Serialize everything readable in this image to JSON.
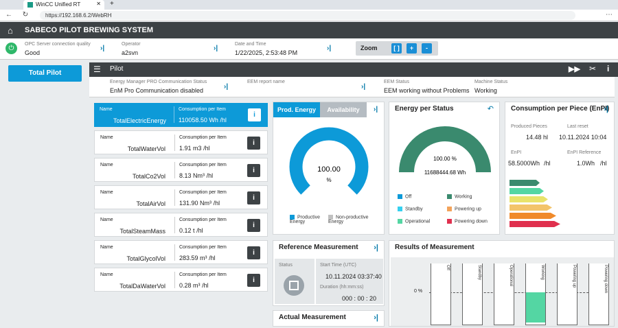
{
  "browser": {
    "tab_title": "WinCC Unified RT",
    "url": "https://192.168.6.2/WebRH"
  },
  "header": {
    "title": "SABECO PILOT BREWING SYSTEM"
  },
  "infobar": {
    "opc_label": "OPC Server connection quality",
    "opc_value": "Good",
    "operator_label": "Operator",
    "operator_value": "a2svn",
    "datetime_label": "Date and Time",
    "datetime_value": "1/22/2025, 2:53:48 PM",
    "zoom_label": "Zoom",
    "zoom_fit": "[ ]",
    "zoom_in": "+",
    "zoom_out": "-"
  },
  "nav": {
    "total_pilot": "Total Pilot"
  },
  "panel": {
    "title": "Pilot"
  },
  "status": {
    "em_label": "Energy Manager PRO Communication Status",
    "em_value": "EnM Pro Communication disabled",
    "eem_report_label": "EEM report name",
    "eem_status_label": "EEM Status",
    "eem_status_value": "EEM working without Problems",
    "machine_label": "Machine Status",
    "machine_value": "Working"
  },
  "cards": [
    {
      "name_label": "Name",
      "name": "TotalElectricEnergy",
      "cpi_label": "Consumption per Item",
      "value": "110058.50",
      "unit": "Wh",
      "per": "/hl",
      "selected": true
    },
    {
      "name_label": "Name",
      "name": "TotalWaterVol",
      "cpi_label": "Consumption per Item",
      "value": "1.91",
      "unit": "m3",
      "per": "/hl",
      "selected": false
    },
    {
      "name_label": "Name",
      "name": "TotalCo2Vol",
      "cpi_label": "Consumption per Item",
      "value": "8.13",
      "unit": "Nm³",
      "per": "/hl",
      "selected": false
    },
    {
      "name_label": "Name",
      "name": "TotalAirVol",
      "cpi_label": "Consumption per Item",
      "value": "131.90",
      "unit": "Nm³",
      "per": "/hl",
      "selected": false
    },
    {
      "name_label": "Name",
      "name": "TotalSteamMass",
      "cpi_label": "Consumption per Item",
      "value": "0.12",
      "unit": "t",
      "per": "/hl",
      "selected": false
    },
    {
      "name_label": "Name",
      "name": "TotalGlycolVol",
      "cpi_label": "Consumption per Item",
      "value": "283.59",
      "unit": "m³",
      "per": "/hl",
      "selected": false
    },
    {
      "name_label": "Name",
      "name": "TotalDaWaterVol",
      "cpi_label": "Consumption per Item",
      "value": "0.28",
      "unit": "m³",
      "per": "/hl",
      "selected": false
    }
  ],
  "prod": {
    "tab_energy": "Prod. Energy",
    "tab_availability": "Availability",
    "gauge_value": "100.00",
    "gauge_unit": "%",
    "gauge_fraction": 1.0,
    "legend_productive": "Productive Energy",
    "legend_nonproductive": "Non-productive Energy",
    "color_productive": "#0d9ad8",
    "color_nonproductive": "#c0c0c0"
  },
  "eps": {
    "title": "Energy per Status",
    "gauge_value": "100.00 %",
    "gauge_energy": "11688444.68 Wh",
    "gauge_color": "#3a8a6e",
    "legend": [
      {
        "label": "Off",
        "color": "#0d9ad8"
      },
      {
        "label": "Working",
        "color": "#3a8a6e"
      },
      {
        "label": "Standby",
        "color": "#35d0f0"
      },
      {
        "label": "Powering up",
        "color": "#f3a35a"
      },
      {
        "label": "Operational",
        "color": "#54d6a3"
      },
      {
        "label": "Powering down",
        "color": "#e0304e"
      }
    ]
  },
  "enpi": {
    "title": "Consumption per Piece (EnPI)",
    "produced_label": "Produced Pieces",
    "produced_value": "14.48 hl",
    "last_reset_label": "Last reset",
    "last_reset_value": "10.11.2024 10:04",
    "enpi_label": "EnPI",
    "enpi_value": "58.5000Wh",
    "enpi_unit": "/hl",
    "enpi_ref_label": "EnPI Reference",
    "enpi_ref_value": "1.0Wh",
    "enpi_ref_unit": "/hl",
    "energy_class_colors": [
      "#3a8a6e",
      "#54d6a3",
      "#e9e36a",
      "#f3c46a",
      "#f08a2a",
      "#e0304e"
    ]
  },
  "ref": {
    "title": "Reference Measurement",
    "status_label": "Status",
    "start_label": "Start Time (UTC)",
    "start_value": "10.11.2024 03:37:40",
    "duration_label": "Duration (hh:mm:ss)",
    "duration_value": "000 : 00 : 20"
  },
  "actual": {
    "title": "Actual Measurement"
  },
  "results": {
    "title": "Results of Measurement",
    "zero_label": "0 %",
    "slots": [
      {
        "label": "Off",
        "fill": 0
      },
      {
        "label": "Standby",
        "fill": 0
      },
      {
        "label": "Operational",
        "fill": 0
      },
      {
        "label": "Working",
        "fill": 0.55
      },
      {
        "label": "Powering up",
        "fill": 0
      },
      {
        "label": "Powering down",
        "fill": 0
      }
    ],
    "fill_color": "#54d6a3"
  }
}
